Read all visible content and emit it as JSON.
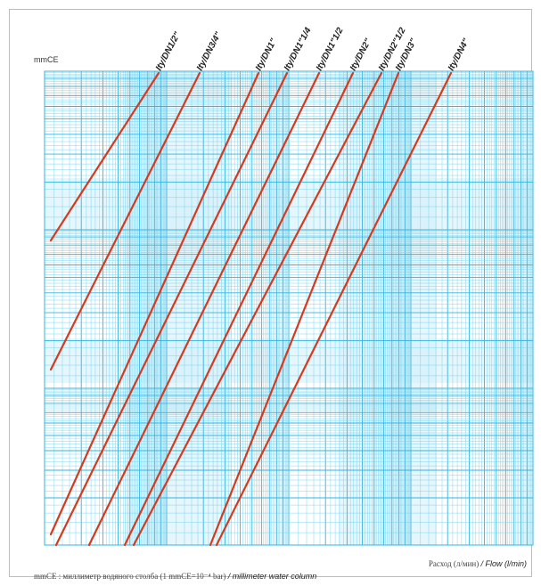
{
  "chart_data": {
    "type": "line",
    "ylabel": "mmCE",
    "xlabel_ru": "Расход (л/мин)",
    "xlabel_en": "/ Flow (l/min)",
    "grid": true,
    "colors": {
      "line": "#d63a1e",
      "grid_minor": "#6fd2ee",
      "grid_major": "#34b4df",
      "band": "#cfeefa"
    },
    "series": [
      {
        "name": "Ity/DN1/2\"",
        "label": "Ity/DN1/2\""
      },
      {
        "name": "Ity/DN3/4\"",
        "label": "Ity/DN3/4\""
      },
      {
        "name": "Ity/DN1\"",
        "label": "Ity/DN1\""
      },
      {
        "name": "Ity/DN1\"1/4",
        "label": "Ity/DN1\"1/4"
      },
      {
        "name": "Ity/DN1\"1/2",
        "label": "Ity/DN1\"1/2"
      },
      {
        "name": "Ity/DN2\"",
        "label": "Ity/DN2\""
      },
      {
        "name": "Ity/DN2\"1/2",
        "label": "Ity/DN2\"1/2"
      },
      {
        "name": "Ity/DN3\"",
        "label": "Ity/DN3\""
      },
      {
        "name": "Ity/DN4\"",
        "label": "Ity/DN4\""
      }
    ]
  },
  "footnote": {
    "ru": "mmCE : миллиметр водяного столба (1 mmCE=10⁻⁴ bar)",
    "en": "/ millimeter water column"
  }
}
